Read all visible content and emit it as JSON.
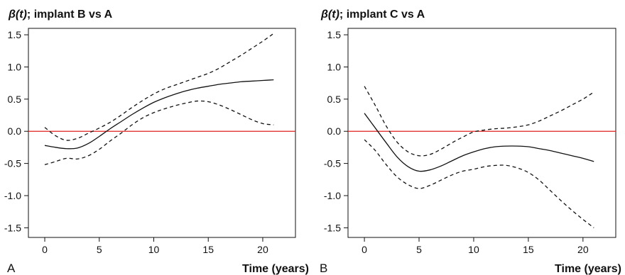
{
  "chart_data": [
    {
      "type": "line",
      "panel_label": "A",
      "title_symbol": "β(t)",
      "title": "; implant B vs A",
      "xlabel": "Time (years)",
      "ylabel": "",
      "xlim": [
        -1.5,
        23
      ],
      "ylim": [
        -1.65,
        1.6
      ],
      "xticks": [
        0,
        5,
        10,
        15,
        20
      ],
      "yticks": [
        -1.5,
        -1.0,
        -0.5,
        0.0,
        0.5,
        1.0,
        1.5
      ],
      "ytick_labels": [
        "-1.5",
        "-1.0",
        "-0.5",
        "0.0",
        "0.5",
        "1.0",
        "1.5"
      ],
      "reference_line": {
        "y": 0,
        "color": "#e0201b"
      },
      "series": [
        {
          "role": "estimate",
          "style": "solid",
          "x": [
            0,
            1,
            2,
            3,
            4,
            5,
            6,
            7,
            8,
            9,
            10,
            11,
            12,
            13,
            14,
            15,
            16,
            17,
            18,
            19,
            20,
            21
          ],
          "y": [
            -0.22,
            -0.25,
            -0.27,
            -0.26,
            -0.19,
            -0.08,
            0.04,
            0.15,
            0.26,
            0.36,
            0.45,
            0.52,
            0.58,
            0.63,
            0.67,
            0.7,
            0.73,
            0.75,
            0.77,
            0.78,
            0.79,
            0.8
          ]
        },
        {
          "role": "upper",
          "style": "dashed",
          "x": [
            0,
            1,
            2,
            3,
            4,
            5,
            6,
            7,
            8,
            9,
            10,
            11,
            12,
            13,
            14,
            15,
            16,
            17,
            18,
            19,
            20,
            21
          ],
          "y": [
            0.06,
            -0.07,
            -0.14,
            -0.11,
            -0.03,
            0.05,
            0.14,
            0.25,
            0.37,
            0.48,
            0.58,
            0.66,
            0.72,
            0.78,
            0.84,
            0.9,
            0.98,
            1.08,
            1.18,
            1.29,
            1.4,
            1.52
          ]
        },
        {
          "role": "lower",
          "style": "dashed",
          "x": [
            0,
            1,
            2,
            3,
            4,
            5,
            6,
            7,
            8,
            9,
            10,
            11,
            12,
            13,
            14,
            15,
            16,
            17,
            18,
            19,
            20,
            21
          ],
          "y": [
            -0.52,
            -0.47,
            -0.42,
            -0.43,
            -0.38,
            -0.28,
            -0.15,
            -0.03,
            0.1,
            0.21,
            0.29,
            0.35,
            0.4,
            0.44,
            0.47,
            0.46,
            0.41,
            0.34,
            0.26,
            0.18,
            0.12,
            0.1
          ]
        }
      ]
    },
    {
      "type": "line",
      "panel_label": "B",
      "title_symbol": "β(t)",
      "title": "; implant C vs A",
      "xlabel": "Time (years)",
      "ylabel": "",
      "xlim": [
        -1.5,
        23
      ],
      "ylim": [
        -1.65,
        1.6
      ],
      "xticks": [
        0,
        5,
        10,
        15,
        20
      ],
      "yticks": [
        -1.5,
        -1.0,
        -0.5,
        0.0,
        0.5,
        1.0,
        1.5
      ],
      "ytick_labels": [
        "-1.5",
        "-1.0",
        "-0.5",
        "0.0",
        "0.5",
        "1.0",
        "1.5"
      ],
      "reference_line": {
        "y": 0,
        "color": "#e0201b"
      },
      "series": [
        {
          "role": "estimate",
          "style": "solid",
          "x": [
            0,
            1,
            2,
            3,
            4,
            5,
            6,
            7,
            8,
            9,
            10,
            11,
            12,
            13,
            14,
            15,
            16,
            17,
            18,
            19,
            20,
            21
          ],
          "y": [
            0.28,
            0.05,
            -0.18,
            -0.4,
            -0.55,
            -0.62,
            -0.6,
            -0.54,
            -0.46,
            -0.38,
            -0.32,
            -0.27,
            -0.24,
            -0.23,
            -0.23,
            -0.24,
            -0.27,
            -0.3,
            -0.34,
            -0.38,
            -0.42,
            -0.47
          ]
        },
        {
          "role": "upper",
          "style": "dashed",
          "x": [
            0,
            1,
            2,
            3,
            4,
            5,
            6,
            7,
            8,
            9,
            10,
            11,
            12,
            13,
            14,
            15,
            16,
            17,
            18,
            19,
            20,
            21
          ],
          "y": [
            0.7,
            0.4,
            0.08,
            -0.17,
            -0.32,
            -0.38,
            -0.36,
            -0.28,
            -0.18,
            -0.09,
            -0.01,
            0.02,
            0.04,
            0.05,
            0.07,
            0.1,
            0.16,
            0.24,
            0.32,
            0.41,
            0.5,
            0.61
          ]
        },
        {
          "role": "lower",
          "style": "dashed",
          "x": [
            0,
            1,
            2,
            3,
            4,
            5,
            6,
            7,
            8,
            9,
            10,
            11,
            12,
            13,
            14,
            15,
            16,
            17,
            18,
            19,
            20,
            21
          ],
          "y": [
            -0.13,
            -0.3,
            -0.52,
            -0.71,
            -0.83,
            -0.89,
            -0.84,
            -0.76,
            -0.68,
            -0.62,
            -0.59,
            -0.55,
            -0.53,
            -0.53,
            -0.57,
            -0.64,
            -0.76,
            -0.92,
            -1.08,
            -1.23,
            -1.37,
            -1.5
          ]
        }
      ]
    }
  ]
}
